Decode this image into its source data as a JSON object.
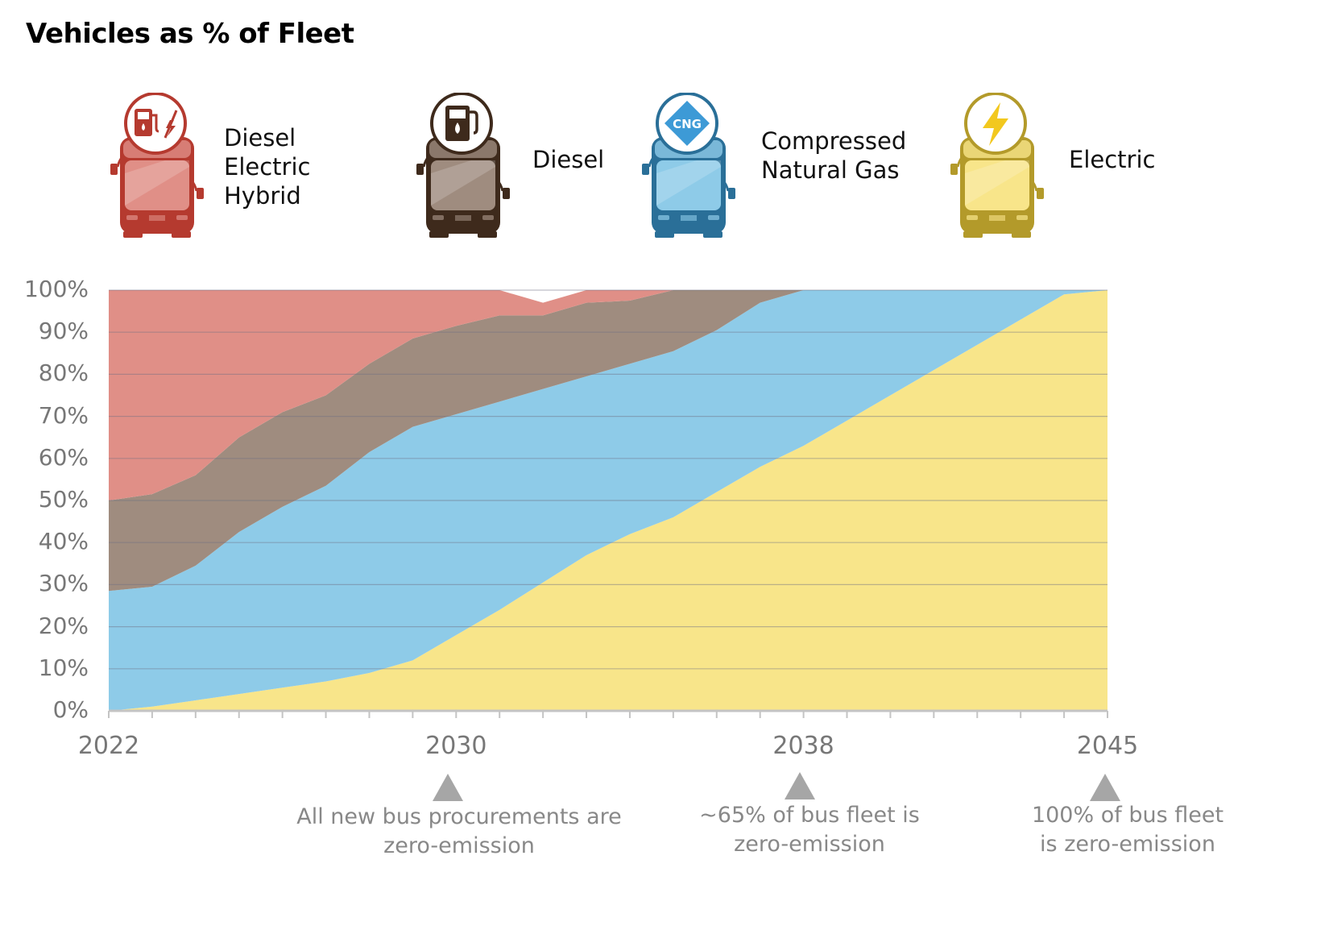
{
  "title": "Vehicles as % of Fleet",
  "legend": [
    {
      "label": "Diesel Electric\nHybrid",
      "color": "#e08f87",
      "dark": "#b53a2f",
      "icon": "fuel-electric-icon"
    },
    {
      "label": "Diesel",
      "color": "#9f8c7f",
      "dark": "#3e2a1c",
      "icon": "fuel-pump-icon"
    },
    {
      "label": "Compressed\nNatural Gas",
      "color": "#8ecbe8",
      "dark": "#2a6f98",
      "icon": "cng-icon",
      "badge": "CNG"
    },
    {
      "label": "Electric",
      "color": "#f8e58a",
      "dark": "#b39a2a",
      "icon": "lightning-icon"
    }
  ],
  "chart_data": {
    "type": "area",
    "stacked": true,
    "x": [
      2022,
      2023,
      2024,
      2025,
      2026,
      2027,
      2028,
      2029,
      2030,
      2031,
      2032,
      2033,
      2034,
      2035,
      2036,
      2037,
      2038,
      2039,
      2040,
      2041,
      2042,
      2043,
      2044,
      2045
    ],
    "xticks": [
      "2022",
      "2030",
      "2038",
      "2045"
    ],
    "yticks": [
      "0%",
      "10%",
      "20%",
      "30%",
      "40%",
      "50%",
      "60%",
      "70%",
      "80%",
      "90%",
      "100%"
    ],
    "ylim": [
      0,
      100
    ],
    "series": [
      {
        "name": "Electric",
        "color": "#f8e58a",
        "values": [
          0,
          1,
          2.5,
          4,
          5.5,
          7,
          9,
          12,
          18,
          24,
          30.5,
          37,
          42,
          46,
          52,
          58,
          63,
          69,
          75,
          81,
          87,
          93,
          99,
          100
        ]
      },
      {
        "name": "Compressed Natural Gas",
        "color": "#8ecbe8",
        "values": [
          28.5,
          28.5,
          32,
          38.5,
          43,
          46.5,
          52.5,
          55.5,
          52.5,
          49.5,
          46,
          42.5,
          40.5,
          39.5,
          38.5,
          39,
          37,
          31,
          25,
          19,
          13,
          7,
          1,
          0
        ]
      },
      {
        "name": "Diesel",
        "color": "#9f8c7f",
        "values": [
          21.5,
          22,
          21.5,
          22.5,
          22.5,
          21.5,
          21,
          21,
          21,
          20.5,
          17.5,
          17.5,
          15,
          14.5,
          9.5,
          3,
          0,
          0,
          0,
          0,
          0,
          0,
          0,
          0
        ]
      },
      {
        "name": "Diesel Electric Hybrid",
        "color": "#e08f87",
        "values": [
          50,
          48.5,
          44,
          35,
          29,
          25,
          17.5,
          11.5,
          8.5,
          6,
          3,
          3,
          2.5,
          0,
          0,
          0,
          0,
          0,
          0,
          0,
          0,
          0,
          0,
          0
        ]
      }
    ],
    "gridlines": true
  },
  "annotations": [
    {
      "year": 2030,
      "text": "All new bus procurements are\nzero-emission"
    },
    {
      "year": 2038,
      "text": "~65% of bus fleet is\nzero-emission"
    },
    {
      "year": 2045,
      "text": "100% of bus fleet\nis zero-emission"
    }
  ]
}
